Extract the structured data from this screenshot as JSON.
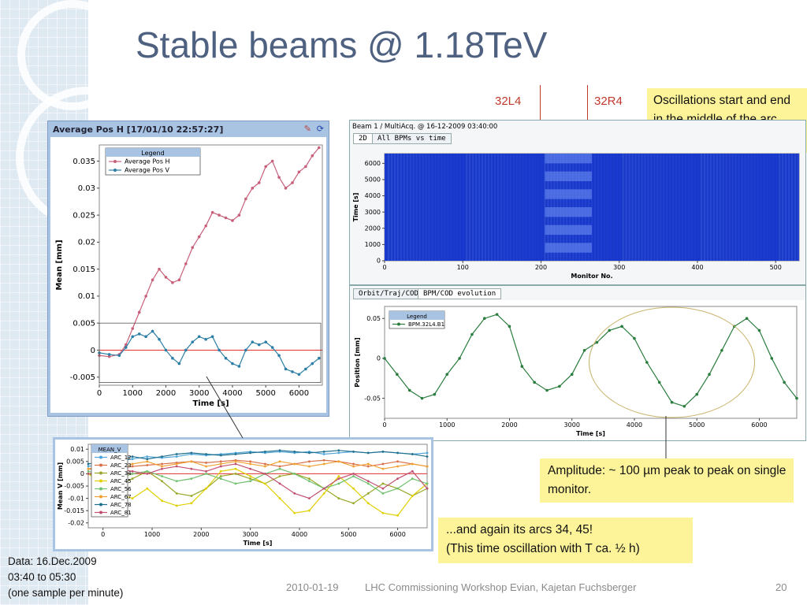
{
  "slide": {
    "title": "Stable beams @ 1.18TeV",
    "marker_left": "32L4",
    "marker_right": "32R4",
    "note_arc": "Oscillations start and end in the middle of the arc",
    "note_amplitude": "Amplitude: ~ 100 µm peak to peak on single monitor.",
    "note_again_1": "...and again its arcs 34, 45!",
    "note_again_2": "(This time oscillation with T ca. ½ h)",
    "data_line1": "Data: 16.Dec.2009",
    "data_line2": "03:40 to 05:30",
    "data_line3": "(one sample per minute)",
    "footer_date": "2010-01-19",
    "footer_event": "LHC Commissioning Workshop Evian, Kajetan Fuchsberger",
    "page_number": "20",
    "colors": {
      "title": "#4f6180",
      "marker": "#c0392b",
      "note_bg": "#fdf49a"
    }
  },
  "chart_data": [
    {
      "type": "line",
      "window_title": "Average Pos H  [17/01/10 22:57:27]",
      "legend_title": "Legend",
      "xlabel": "Time [s]",
      "ylabel": "Mean [mm]",
      "xlim": [
        0,
        6700
      ],
      "ylim": [
        -0.0065,
        0.038
      ],
      "x_ticks": [
        "0",
        "1000",
        "2000",
        "3000",
        "4000",
        "5000",
        "6000"
      ],
      "y_ticks": [
        "-0.005",
        "0",
        "0.005",
        "0.01",
        "0.015",
        "0.02",
        "0.025",
        "0.03",
        "0.035"
      ],
      "reference_line": 0,
      "series": [
        {
          "name": "Average Pos H",
          "color": "#c8607a",
          "x": [
            0,
            300,
            600,
            800,
            1000,
            1200,
            1400,
            1600,
            1800,
            2000,
            2200,
            2400,
            2600,
            2800,
            3000,
            3200,
            3400,
            3600,
            3800,
            4000,
            4200,
            4400,
            4600,
            4800,
            5000,
            5200,
            5400,
            5600,
            5800,
            6000,
            6200,
            6400,
            6600
          ],
          "y": [
            -0.001,
            -0.0012,
            -0.0008,
            0.001,
            0.004,
            0.007,
            0.01,
            0.013,
            0.015,
            0.0135,
            0.0125,
            0.013,
            0.016,
            0.019,
            0.021,
            0.023,
            0.0255,
            0.025,
            0.0245,
            0.024,
            0.025,
            0.028,
            0.03,
            0.031,
            0.034,
            0.035,
            0.032,
            0.03,
            0.031,
            0.033,
            0.034,
            0.036,
            0.0375
          ]
        },
        {
          "name": "Average Pos V",
          "color": "#2c7ea6",
          "x": [
            0,
            300,
            600,
            800,
            1000,
            1200,
            1400,
            1600,
            1800,
            2000,
            2200,
            2400,
            2600,
            2800,
            3000,
            3200,
            3400,
            3600,
            3800,
            4000,
            4200,
            4400,
            4600,
            4800,
            5000,
            5200,
            5400,
            5600,
            5800,
            6000,
            6200,
            6400,
            6600
          ],
          "y": [
            -0.0005,
            -0.0008,
            -0.001,
            0.0005,
            0.0025,
            0.003,
            0.0025,
            0.0035,
            0.002,
            0.0,
            -0.0015,
            -0.0025,
            0.0,
            0.0015,
            0.0025,
            0.002,
            0.0025,
            0.0,
            -0.0015,
            -0.0025,
            -0.003,
            0.0,
            0.0015,
            0.001,
            0.0015,
            0.0005,
            -0.001,
            -0.0035,
            -0.004,
            -0.0045,
            -0.0035,
            -0.0025,
            -0.0015
          ]
        }
      ]
    },
    {
      "type": "heatmap",
      "window_title": "Beam 1 / MultiAcq. @ 16-12-2009 03:40:00",
      "tabs": [
        "2D",
        "All BPMs vs time"
      ],
      "xlabel": "Monitor No.",
      "ylabel": "Time [s]",
      "xlim": [
        0,
        530
      ],
      "ylim": [
        0,
        6600
      ],
      "x_ticks": [
        "0",
        "100",
        "200",
        "300",
        "400",
        "500"
      ],
      "y_ticks": [
        "0",
        "1000",
        "2000",
        "3000",
        "4000",
        "5000",
        "6000"
      ],
      "oscillation_band_monitors": [
        205,
        265
      ]
    },
    {
      "type": "line",
      "tabs": [
        "Orbit/Traj/COD",
        "BPM/COD evolution"
      ],
      "legend_title": "Legend",
      "xlabel": "Time [s]",
      "ylabel": "Position [mm]",
      "xlim": [
        0,
        6600
      ],
      "ylim": [
        -0.075,
        0.065
      ],
      "x_ticks": [
        "0",
        "1000",
        "2000",
        "3000",
        "4000",
        "5000",
        "6000"
      ],
      "y_ticks": [
        "-0.05",
        "0",
        "0.05"
      ],
      "series": [
        {
          "name": "BPM.32L4.B1",
          "color": "#2a7d3e",
          "x": [
            0,
            200,
            400,
            600,
            800,
            1000,
            1200,
            1400,
            1600,
            1800,
            2000,
            2200,
            2400,
            2600,
            2800,
            3000,
            3200,
            3400,
            3600,
            3800,
            4000,
            4200,
            4400,
            4600,
            4800,
            5000,
            5200,
            5400,
            5600,
            5800,
            6000,
            6200,
            6400,
            6600
          ],
          "y": [
            0.0,
            -0.02,
            -0.04,
            -0.05,
            -0.045,
            -0.02,
            0.0,
            0.03,
            0.05,
            0.055,
            0.04,
            -0.01,
            -0.03,
            -0.04,
            -0.035,
            -0.02,
            0.01,
            0.02,
            0.035,
            0.04,
            0.025,
            -0.005,
            -0.03,
            -0.055,
            -0.06,
            -0.045,
            -0.02,
            0.01,
            0.04,
            0.05,
            0.035,
            0.0,
            -0.03,
            -0.05
          ]
        }
      ]
    },
    {
      "type": "line",
      "legend_title": "MEAN_V",
      "xlabel": "Time [s]",
      "ylabel": "Mean V [mm]",
      "xlim": [
        -300,
        6600
      ],
      "ylim": [
        -0.022,
        0.012
      ],
      "x_ticks": [
        "0",
        "1000",
        "2000",
        "3000",
        "4000",
        "5000",
        "6000"
      ],
      "y_ticks": [
        "-0.02",
        "-0.015",
        "-0.01",
        "-0.005",
        "0",
        "0.005",
        "0.01"
      ],
      "reference_line": 0,
      "x": [
        -300,
        0,
        300,
        600,
        900,
        1200,
        1500,
        1800,
        2100,
        2400,
        2700,
        3000,
        3300,
        3600,
        3900,
        4200,
        4500,
        4800,
        5100,
        5400,
        5700,
        6000,
        6300,
        6600
      ],
      "series": [
        {
          "name": "ARC_12",
          "color": "#4ea5d8",
          "y": [
            0.003,
            0.004,
            0.005,
            0.006,
            0.007,
            0.0065,
            0.007,
            0.008,
            0.0075,
            0.008,
            0.0085,
            0.009,
            0.0085,
            0.009,
            0.0085,
            0.009,
            0.008,
            0.0085,
            0.009,
            0.0085,
            0.009,
            0.0085,
            0.008,
            0.0085
          ]
        },
        {
          "name": "ARC_23",
          "color": "#d9704a",
          "y": [
            0.002,
            0.001,
            0.002,
            0.003,
            0.0035,
            0.004,
            0.0045,
            0.005,
            0.0045,
            0.005,
            0.0055,
            0.005,
            0.004,
            0.003,
            0.004,
            0.005,
            0.0055,
            0.005,
            0.004,
            0.003,
            0.004,
            0.005,
            0.004,
            0.003
          ]
        },
        {
          "name": "ARC_34",
          "color": "#9aa828",
          "y": [
            0.0,
            -0.002,
            -0.005,
            -0.002,
            0.001,
            -0.003,
            -0.008,
            -0.009,
            -0.006,
            -0.001,
            0.0,
            -0.002,
            -0.004,
            -0.001,
            0.0,
            -0.002,
            -0.006,
            -0.01,
            -0.012,
            -0.008,
            -0.004,
            -0.006,
            -0.009,
            -0.006
          ]
        },
        {
          "name": "ARC_45",
          "color": "#e0d000",
          "y": [
            0.0,
            -0.004,
            -0.008,
            -0.01,
            -0.006,
            -0.011,
            -0.013,
            -0.012,
            -0.006,
            0.001,
            0.002,
            -0.001,
            -0.004,
            -0.01,
            -0.016,
            -0.015,
            -0.008,
            -0.001,
            -0.006,
            -0.012,
            -0.016,
            -0.017,
            -0.009,
            -0.004
          ]
        },
        {
          "name": "ARC_56",
          "color": "#6fc06f",
          "y": [
            0.001,
            0.0,
            -0.002,
            0.0,
            0.001,
            -0.001,
            -0.003,
            -0.002,
            0.0,
            -0.002,
            -0.004,
            -0.003,
            0.0,
            0.002,
            0.0,
            -0.003,
            -0.006,
            -0.004,
            -0.001,
            -0.004,
            -0.008,
            -0.006,
            -0.002,
            -0.004
          ]
        },
        {
          "name": "ARC_67",
          "color": "#f0a030",
          "y": [
            0.002,
            0.003,
            0.002,
            0.004,
            0.005,
            0.003,
            0.004,
            0.005,
            0.003,
            0.004,
            0.005,
            0.004,
            0.003,
            0.005,
            0.004,
            0.003,
            0.004,
            0.005,
            0.003,
            0.004,
            0.002,
            0.003,
            0.004,
            0.003
          ]
        },
        {
          "name": "ARC_78",
          "color": "#1f6f8f",
          "y": [
            0.004,
            0.005,
            0.006,
            0.007,
            0.006,
            0.007,
            0.008,
            0.0085,
            0.008,
            0.0075,
            0.008,
            0.0085,
            0.009,
            0.0095,
            0.009,
            0.0085,
            0.009,
            0.0095,
            0.009,
            0.0085,
            0.009,
            0.0085,
            0.008,
            0.007
          ]
        },
        {
          "name": "ARC_81",
          "color": "#c05070",
          "y": [
            0.0,
            0.001,
            0.002,
            0.001,
            0.0,
            0.002,
            0.003,
            0.002,
            0.001,
            0.003,
            0.004,
            0.002,
            0.0,
            -0.004,
            -0.008,
            -0.01,
            -0.006,
            -0.002,
            0.0,
            -0.003,
            -0.006,
            -0.002,
            0.001,
            -0.006
          ]
        }
      ]
    }
  ]
}
